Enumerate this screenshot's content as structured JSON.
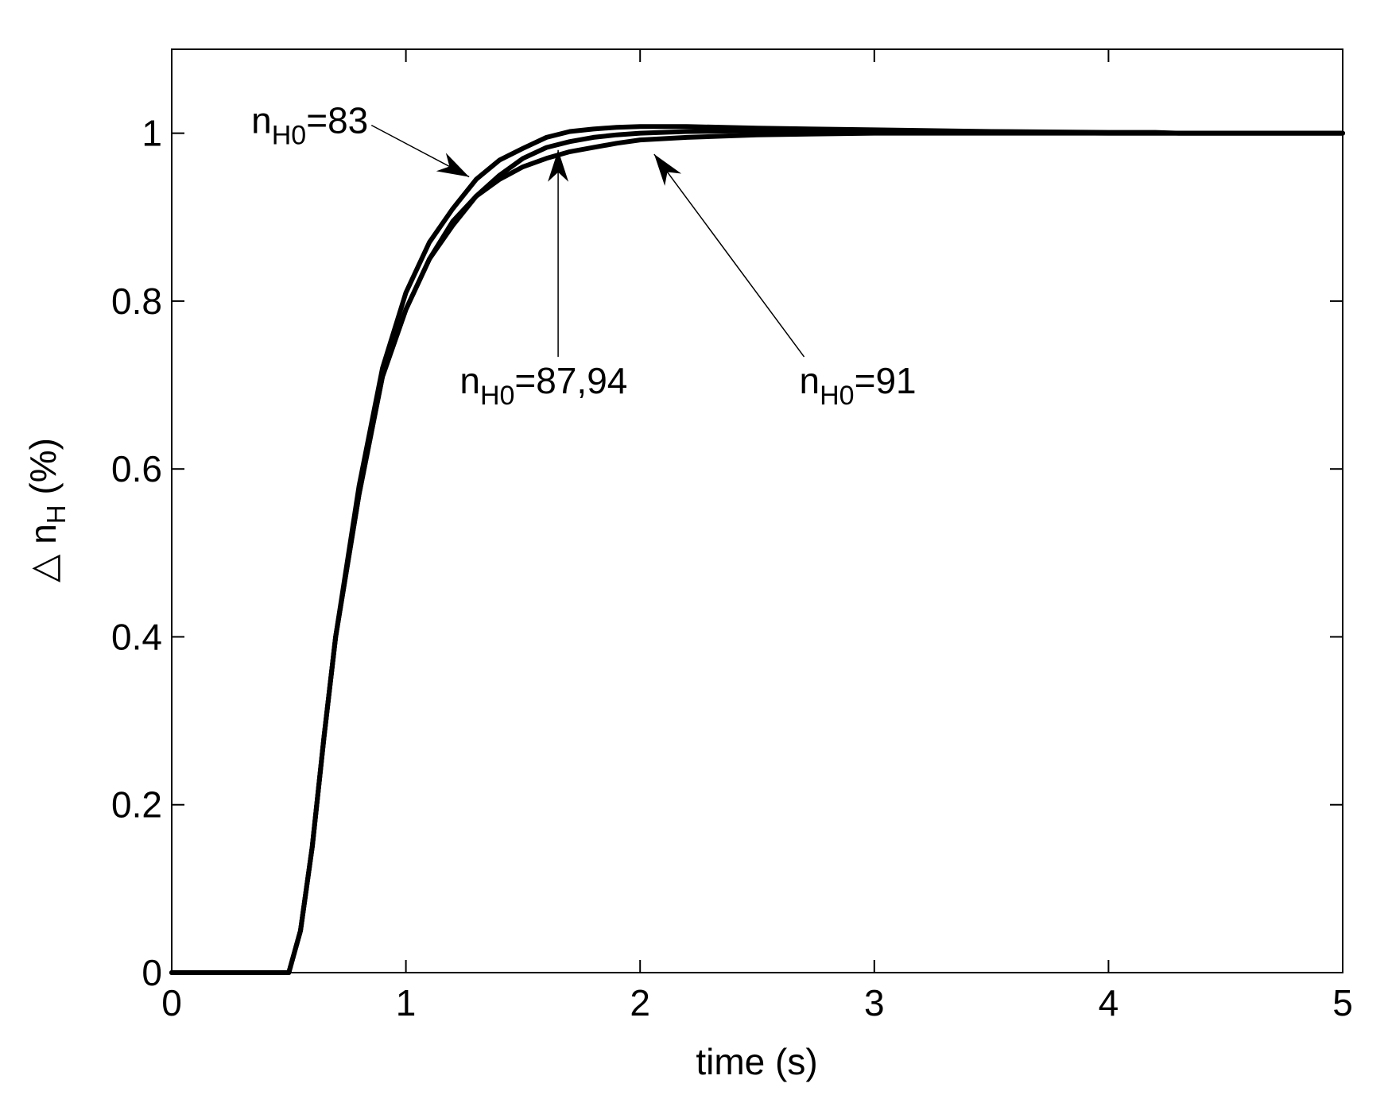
{
  "chart_data": {
    "type": "line",
    "xlabel": "time (s)",
    "ylabel": {
      "prefix": "△ n",
      "sub": "H",
      "suffix": " (%)"
    },
    "xlim": [
      0,
      5
    ],
    "ylim": [
      0,
      1.1
    ],
    "xticks": [
      0,
      1,
      2,
      3,
      4,
      5
    ],
    "yticks": [
      0,
      0.2,
      0.4,
      0.6,
      0.8,
      1
    ],
    "xtick_labels": [
      "0",
      "1",
      "2",
      "3",
      "4",
      "5"
    ],
    "ytick_labels": [
      "0",
      "0.2",
      "0.4",
      "0.6",
      "0.8",
      "1"
    ],
    "grid": false,
    "line_color": "#000000",
    "series": [
      {
        "x": [
          0,
          0.5,
          0.55,
          0.6,
          0.65,
          0.7,
          0.8,
          0.9,
          1.0,
          1.1,
          1.2,
          1.3,
          1.4,
          1.5,
          1.6,
          1.7,
          1.8,
          1.9,
          2.0,
          2.2,
          2.5,
          3.0,
          3.5,
          4.0,
          4.2,
          4.3,
          5.0
        ],
        "y": [
          0,
          0,
          0.05,
          0.15,
          0.28,
          0.4,
          0.58,
          0.72,
          0.81,
          0.87,
          0.91,
          0.945,
          0.968,
          0.982,
          0.995,
          1.002,
          1.005,
          1.007,
          1.008,
          1.008,
          1.006,
          1.004,
          1.002,
          1.001,
          1.001,
          1.0,
          1.0
        ]
      },
      {
        "x": [
          0,
          0.5,
          0.55,
          0.6,
          0.65,
          0.7,
          0.8,
          0.9,
          1.0,
          1.1,
          1.2,
          1.3,
          1.4,
          1.5,
          1.6,
          1.7,
          1.8,
          1.9,
          2.0,
          2.2,
          2.5,
          2.8,
          3.0,
          3.5,
          4.0,
          5.0
        ],
        "y": [
          0,
          0,
          0.05,
          0.15,
          0.28,
          0.4,
          0.57,
          0.71,
          0.79,
          0.85,
          0.89,
          0.925,
          0.95,
          0.97,
          0.983,
          0.99,
          0.995,
          0.998,
          1.0,
          1.002,
          1.003,
          1.003,
          1.002,
          1.001,
          1.0,
          1.0
        ]
      },
      {
        "x": [
          0,
          0.5,
          0.55,
          0.6,
          0.65,
          0.7,
          0.8,
          0.9,
          1.0,
          1.1,
          1.2,
          1.3,
          1.4,
          1.5,
          1.6,
          1.7,
          1.8,
          1.9,
          2.0,
          2.2,
          2.5,
          3.0,
          3.5,
          4.0,
          5.0
        ],
        "y": [
          0,
          0,
          0.05,
          0.15,
          0.28,
          0.4,
          0.57,
          0.71,
          0.79,
          0.85,
          0.895,
          0.925,
          0.945,
          0.96,
          0.97,
          0.978,
          0.983,
          0.988,
          0.992,
          0.995,
          0.998,
          1.0,
          1.0,
          1.0,
          1.0
        ]
      }
    ],
    "annotations": [
      {
        "label_main": "n",
        "label_sub": "H0",
        "label_tail": "=83",
        "text_at": [
          0.34,
          1.0
        ],
        "tip_at": [
          1.27,
          0.948
        ]
      },
      {
        "label_main": "n",
        "label_sub": "H0",
        "label_tail": "=87,94",
        "text_at": [
          1.23,
          0.69
        ],
        "tip_at": [
          1.65,
          0.98
        ]
      },
      {
        "label_main": "n",
        "label_sub": "H0",
        "label_tail": "=91",
        "text_at": [
          2.68,
          0.69
        ],
        "tip_at": [
          2.06,
          0.975
        ]
      }
    ]
  }
}
